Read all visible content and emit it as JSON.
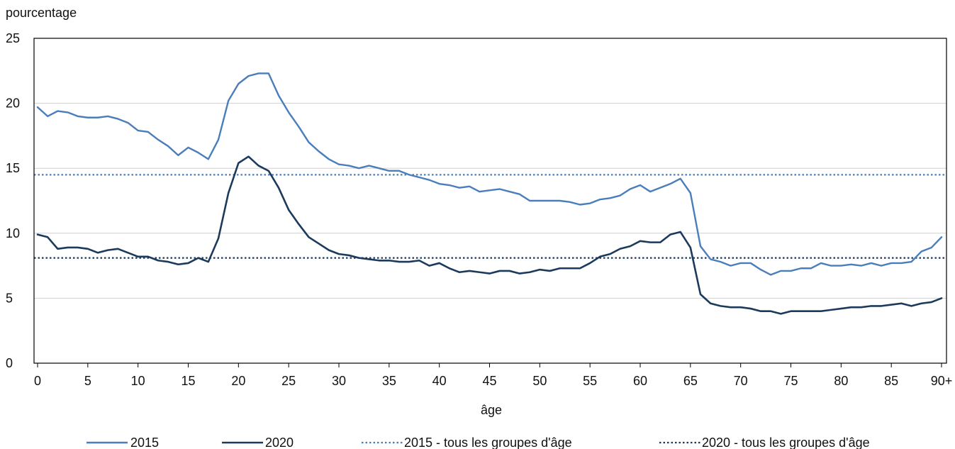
{
  "chart_data": {
    "type": "line",
    "ylabel": "pourcentage",
    "xlabel": "âge",
    "ylim": [
      0,
      25
    ],
    "y_ticks": [
      "0",
      "5",
      "10",
      "15",
      "20",
      "25"
    ],
    "x_ticks": [
      {
        "age": 0,
        "label": "0"
      },
      {
        "age": 5,
        "label": "5"
      },
      {
        "age": 10,
        "label": "10"
      },
      {
        "age": 15,
        "label": "15"
      },
      {
        "age": 20,
        "label": "20"
      },
      {
        "age": 25,
        "label": "25"
      },
      {
        "age": 30,
        "label": "30"
      },
      {
        "age": 35,
        "label": "35"
      },
      {
        "age": 40,
        "label": "40"
      },
      {
        "age": 45,
        "label": "45"
      },
      {
        "age": 50,
        "label": "50"
      },
      {
        "age": 55,
        "label": "55"
      },
      {
        "age": 60,
        "label": "60"
      },
      {
        "age": 65,
        "label": "65"
      },
      {
        "age": 70,
        "label": "70"
      },
      {
        "age": 75,
        "label": "75"
      },
      {
        "age": 80,
        "label": "80"
      },
      {
        "age": 85,
        "label": "85"
      },
      {
        "age": 90,
        "label": "90+"
      }
    ],
    "grid": "horizontal",
    "legend_position": "bottom",
    "series": [
      {
        "name": "2015",
        "color": "#4a7ebb",
        "style": "solid",
        "values": [
          19.7,
          19.0,
          19.4,
          19.3,
          19.0,
          18.9,
          18.9,
          19.0,
          18.8,
          18.5,
          17.9,
          17.8,
          17.2,
          16.7,
          16.0,
          16.6,
          16.2,
          15.7,
          17.2,
          20.2,
          21.5,
          22.1,
          22.3,
          22.3,
          20.6,
          19.3,
          18.2,
          17.0,
          16.3,
          15.7,
          15.3,
          15.2,
          15.0,
          15.2,
          15.0,
          14.8,
          14.8,
          14.5,
          14.3,
          14.1,
          13.8,
          13.7,
          13.5,
          13.6,
          13.2,
          13.3,
          13.4,
          13.2,
          13.0,
          12.5,
          12.5,
          12.5,
          12.5,
          12.4,
          12.2,
          12.3,
          12.6,
          12.7,
          12.9,
          13.4,
          13.7,
          13.2,
          13.5,
          13.8,
          14.2,
          13.1,
          9.0,
          8.0,
          7.8,
          7.5,
          7.7,
          7.7,
          7.2,
          6.8,
          7.1,
          7.1,
          7.3,
          7.3,
          7.7,
          7.5,
          7.5,
          7.6,
          7.5,
          7.7,
          7.5,
          7.7,
          7.7,
          7.8,
          8.6,
          8.9,
          9.7
        ]
      },
      {
        "name": "2020",
        "color": "#1b3a5c",
        "style": "solid",
        "values": [
          9.9,
          9.7,
          8.8,
          8.9,
          8.9,
          8.8,
          8.5,
          8.7,
          8.8,
          8.5,
          8.2,
          8.2,
          7.9,
          7.8,
          7.6,
          7.7,
          8.1,
          7.8,
          9.6,
          13.1,
          15.4,
          15.9,
          15.2,
          14.8,
          13.5,
          11.8,
          10.7,
          9.7,
          9.2,
          8.7,
          8.4,
          8.3,
          8.1,
          8.0,
          7.9,
          7.9,
          7.8,
          7.8,
          7.9,
          7.5,
          7.7,
          7.3,
          7.0,
          7.1,
          7.0,
          6.9,
          7.1,
          7.1,
          6.9,
          7.0,
          7.2,
          7.1,
          7.3,
          7.3,
          7.3,
          7.7,
          8.2,
          8.4,
          8.8,
          9.0,
          9.4,
          9.3,
          9.3,
          9.9,
          10.1,
          8.9,
          5.3,
          4.6,
          4.4,
          4.3,
          4.3,
          4.2,
          4.0,
          4.0,
          3.8,
          4.0,
          4.0,
          4.0,
          4.0,
          4.1,
          4.2,
          4.3,
          4.3,
          4.4,
          4.4,
          4.5,
          4.6,
          4.4,
          4.6,
          4.7,
          5.0
        ]
      },
      {
        "name": "2015 - tous les groupes d'âge",
        "color": "#4a7ebb",
        "style": "dotted",
        "constant": 14.5
      },
      {
        "name": "2020 - tous les groupes d'âge",
        "color": "#1b3a5c",
        "style": "dotted",
        "constant": 8.1
      }
    ]
  }
}
